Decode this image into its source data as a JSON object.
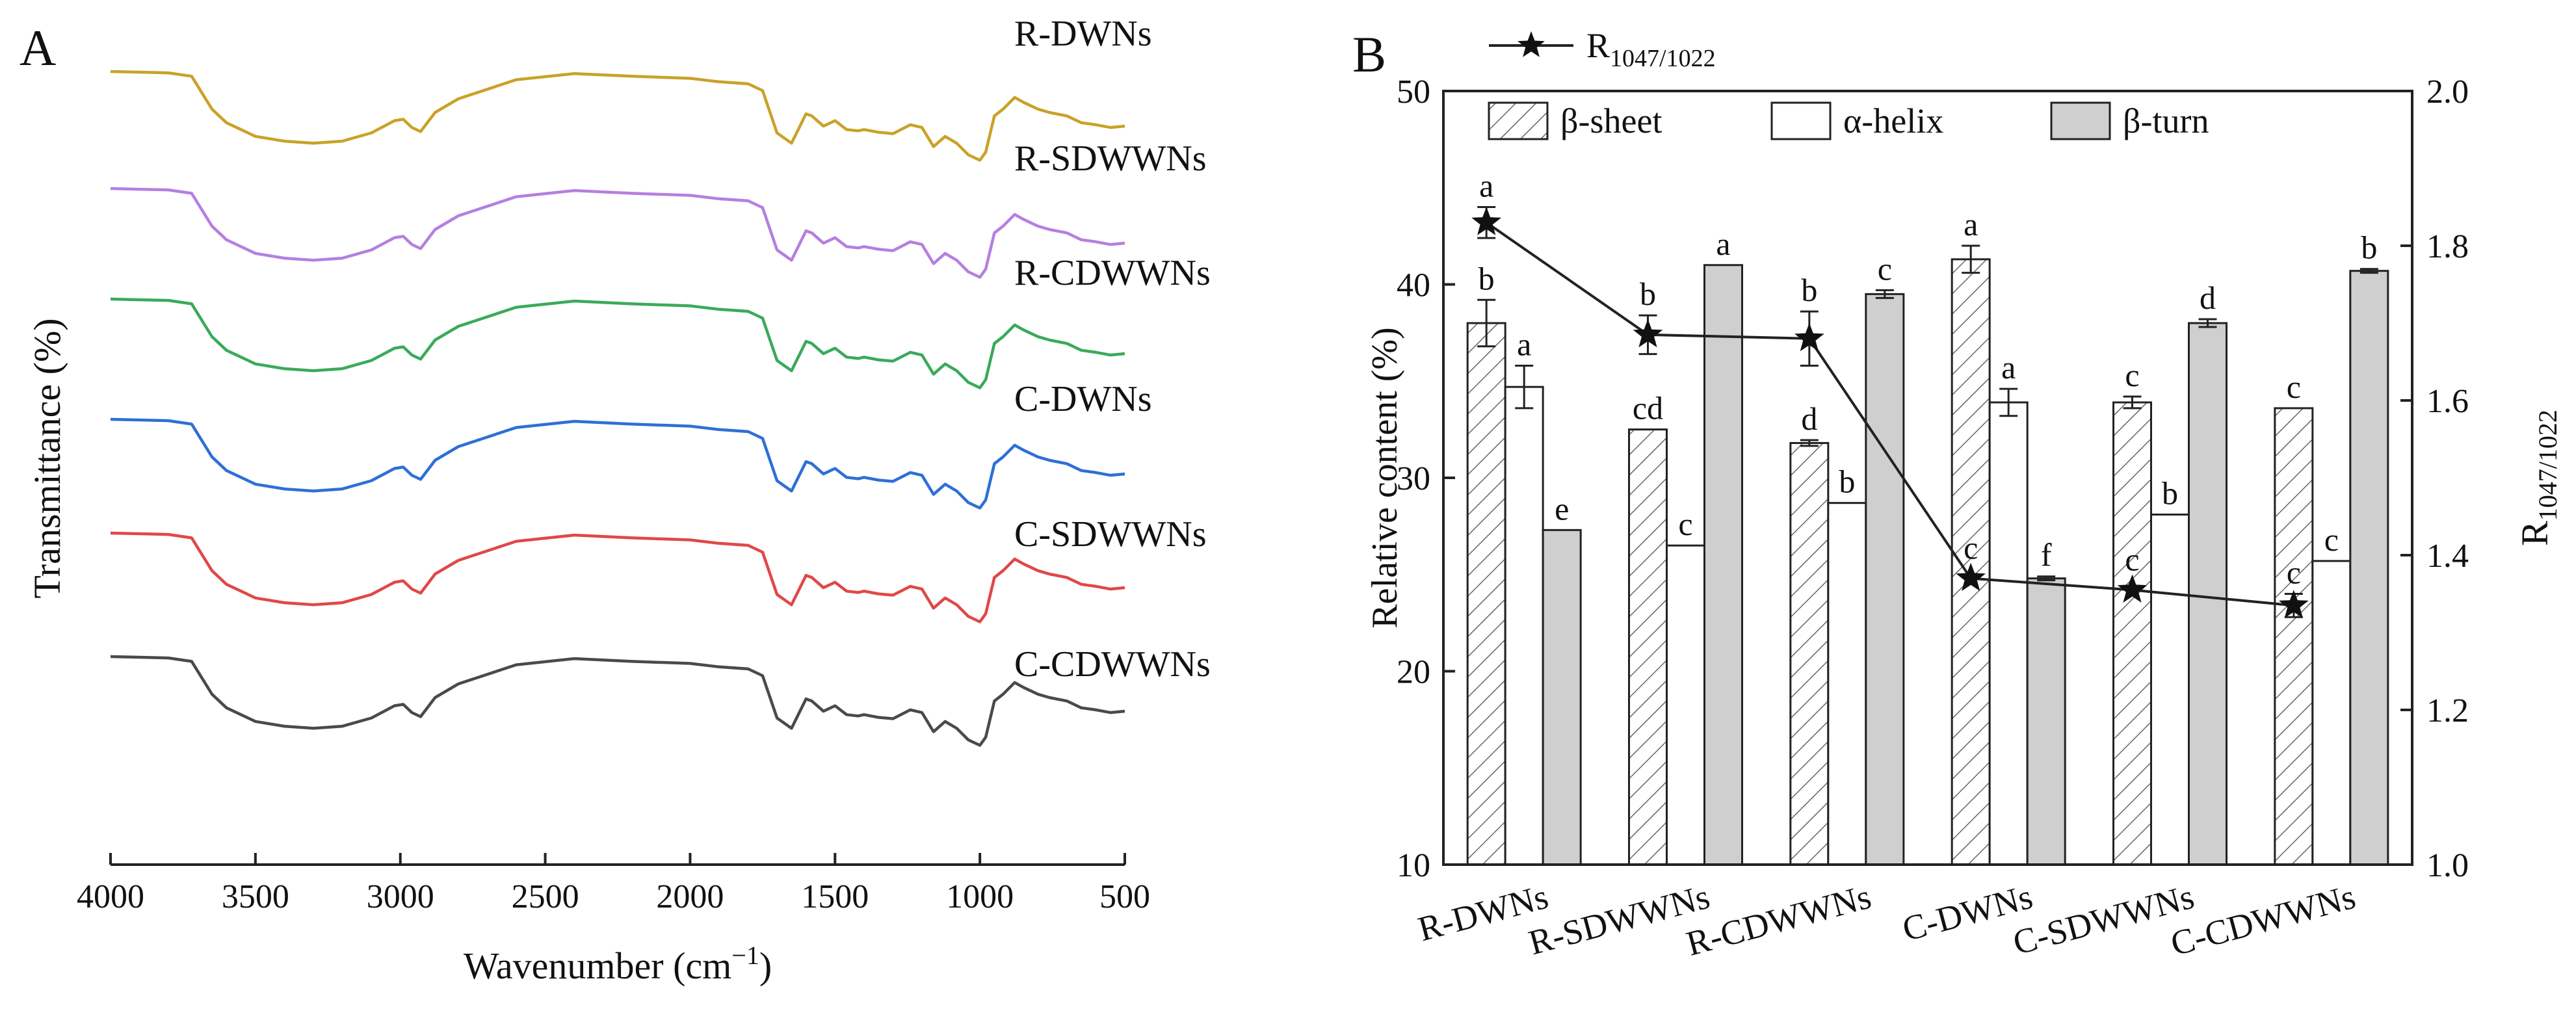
{
  "chart_data": [
    {
      "panel_label": "A",
      "type": "line",
      "title": "",
      "xlabel": "Wavenumber (cm",
      "xlabel_sup": "−1",
      "xlabel_tail": ")",
      "ylabel": "Transmittance (%)",
      "xlim": [
        4000,
        500
      ],
      "xticks": [
        "4000",
        "3500",
        "3000",
        "2500",
        "2000",
        "1500",
        "1000",
        "500"
      ],
      "series_shape": {
        "x": [
          4000,
          3900,
          3800,
          3720,
          3650,
          3600,
          3500,
          3400,
          3300,
          3200,
          3100,
          3020,
          2990,
          2960,
          2930,
          2880,
          2800,
          2600,
          2400,
          2200,
          2000,
          1900,
          1800,
          1750,
          1700,
          1650,
          1600,
          1580,
          1540,
          1500,
          1460,
          1420,
          1400,
          1350,
          1300,
          1240,
          1200,
          1160,
          1120,
          1080,
          1040,
          1000,
          980,
          950,
          920,
          880,
          850,
          800,
          760,
          700,
          650,
          600,
          550,
          500
        ],
        "y": [
          1.0,
          0.99,
          0.98,
          0.93,
          0.45,
          0.25,
          0.05,
          -0.02,
          -0.05,
          -0.02,
          0.1,
          0.28,
          0.3,
          0.18,
          0.12,
          0.4,
          0.6,
          0.88,
          0.97,
          0.93,
          0.9,
          0.85,
          0.82,
          0.72,
          0.1,
          -0.05,
          0.38,
          0.35,
          0.2,
          0.28,
          0.15,
          0.13,
          0.15,
          0.11,
          0.09,
          0.22,
          0.18,
          -0.1,
          0.05,
          -0.05,
          -0.22,
          -0.3,
          -0.18,
          0.35,
          0.45,
          0.62,
          0.55,
          0.45,
          0.4,
          0.35,
          0.25,
          0.22,
          0.18,
          0.2
        ]
      },
      "series": [
        {
          "name": "R-DWNs",
          "color": "#c9a227"
        },
        {
          "name": "R-SDWWNs",
          "color": "#b57fe0"
        },
        {
          "name": "R-CDWWNs",
          "color": "#3aaa5a"
        },
        {
          "name": "C-DWNs",
          "color": "#2f6fd6"
        },
        {
          "name": "C-SDWWNs",
          "color": "#e04848"
        },
        {
          "name": "C-CDWWNs",
          "color": "#4a4a4a"
        }
      ]
    },
    {
      "panel_label": "B",
      "type": "bar",
      "xlabel": "",
      "ylabel": "Relative content (%)",
      "ylabel2": "R",
      "ylabel2_sub": "1047/1022",
      "ylim": [
        10,
        50
      ],
      "yticks": [
        "10",
        "20",
        "30",
        "40",
        "50"
      ],
      "y2lim": [
        1.0,
        2.0
      ],
      "y2ticks": [
        "1.0",
        "1.2",
        "1.4",
        "1.6",
        "1.8",
        "2.0"
      ],
      "categories": [
        "R-DWNs",
        "R-SDWWNs",
        "R-CDWWNs",
        "C-DWNs",
        "C-SDWWNs",
        "C-CDWWNs"
      ],
      "series": [
        {
          "name": "β-sheet",
          "values": [
            38.0,
            32.5,
            31.8,
            41.3,
            33.9,
            33.6
          ],
          "errors": [
            1.2,
            0.0,
            0.15,
            0.7,
            0.3,
            0.0
          ],
          "letters": [
            "b",
            "cd",
            "d",
            "a",
            "c",
            "c"
          ],
          "fill": "hatch"
        },
        {
          "name": "α-helix",
          "values": [
            34.7,
            26.5,
            28.7,
            33.9,
            28.1,
            25.7
          ],
          "errors": [
            1.1,
            0.0,
            0.0,
            0.7,
            0.0,
            0.0
          ],
          "letters": [
            "a",
            "c",
            "b",
            "a",
            "b",
            "c"
          ],
          "fill": "#ffffff"
        },
        {
          "name": "β-turn",
          "values": [
            27.3,
            41.0,
            39.5,
            24.8,
            38.0,
            40.7
          ],
          "errors": [
            0.0,
            0.0,
            0.2,
            0.1,
            0.2,
            0.1
          ],
          "letters": [
            "e",
            "a",
            "c",
            "f",
            "d",
            "b"
          ],
          "fill": "#cfcfcf"
        }
      ],
      "line_series": {
        "name": "R",
        "name_sub": "1047/1022",
        "values": [
          1.83,
          1.685,
          1.68,
          1.37,
          1.355,
          1.335
        ],
        "errors": [
          0.02,
          0.025,
          0.035,
          0.0,
          0.0,
          0.015
        ],
        "letters": [
          "a",
          "b",
          "b",
          "c",
          "c",
          "c"
        ]
      },
      "legend_position": "top-left"
    }
  ]
}
